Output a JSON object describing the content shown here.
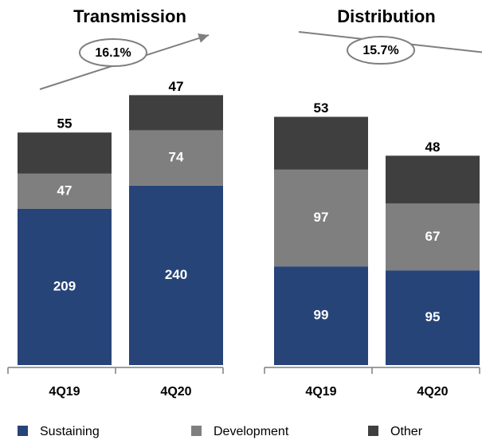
{
  "chart_data": [
    {
      "type": "bar",
      "stacked": true,
      "title": "Transmission",
      "annotation": "16.1%",
      "arrow": "up",
      "categories": [
        "4Q19",
        "4Q20"
      ],
      "series": [
        {
          "name": "Sustaining",
          "color": "#264478",
          "values": [
            209,
            240
          ]
        },
        {
          "name": "Development",
          "color": "#7f7f7f",
          "values": [
            47,
            74
          ]
        },
        {
          "name": "Other",
          "color": "#3f3f3f",
          "values": [
            55,
            47
          ]
        }
      ],
      "ylim": [
        0,
        420
      ]
    },
    {
      "type": "bar",
      "stacked": true,
      "title": "Distribution",
      "annotation": "15.7%",
      "arrow": "down",
      "categories": [
        "4Q19",
        "4Q20"
      ],
      "series": [
        {
          "name": "Sustaining",
          "color": "#264478",
          "values": [
            99,
            95
          ]
        },
        {
          "name": "Development",
          "color": "#7f7f7f",
          "values": [
            97,
            67
          ]
        },
        {
          "name": "Other",
          "color": "#3f3f3f",
          "values": [
            53,
            48
          ]
        }
      ],
      "ylim": [
        0,
        315
      ]
    }
  ]
}
